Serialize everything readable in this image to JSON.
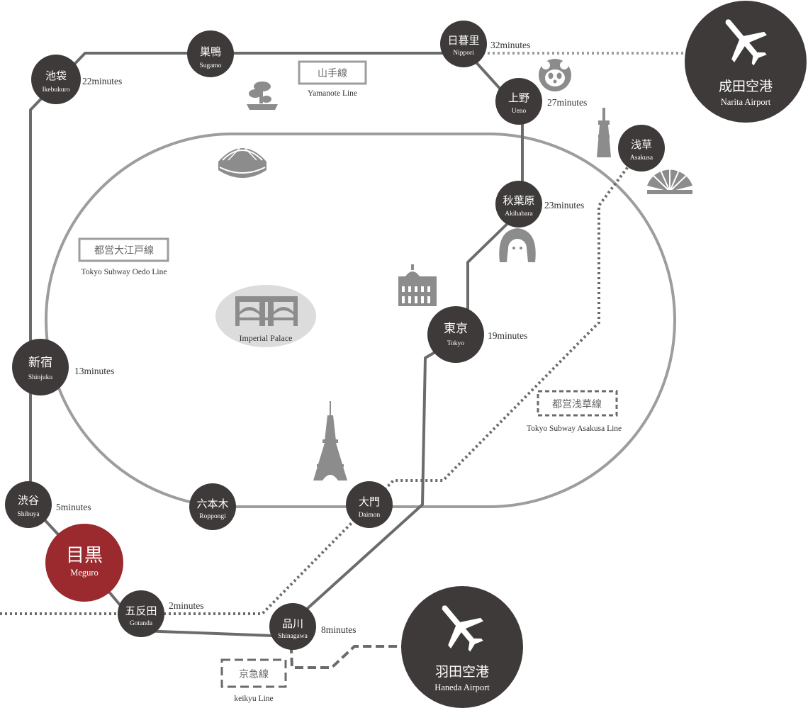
{
  "colors": {
    "station": "#3e3a39",
    "station_highlight": "#9b2a2e",
    "line_dark": "#6b6b6b",
    "line_oedo": "#9d9d9d",
    "palace_fill": "#dcdcdc"
  },
  "stations": {
    "ikebukuro": {
      "ja": "池袋",
      "en": "Ikebukuro"
    },
    "sugamo": {
      "ja": "巣鴨",
      "en": "Sugamo"
    },
    "nippori": {
      "ja": "日暮里",
      "en": "Nippori"
    },
    "ueno": {
      "ja": "上野",
      "en": "Ueno"
    },
    "asakusa": {
      "ja": "浅草",
      "en": "Asakusa"
    },
    "akihabara": {
      "ja": "秋葉原",
      "en": "Akihabara"
    },
    "tokyo": {
      "ja": "東京",
      "en": "Tokyo"
    },
    "shinjuku": {
      "ja": "新宿",
      "en": "Shinjuku"
    },
    "shibuya": {
      "ja": "渋谷",
      "en": "Shibuya"
    },
    "roppongi": {
      "ja": "六本木",
      "en": "Roppongi"
    },
    "daimon": {
      "ja": "大門",
      "en": "Daimon"
    },
    "meguro": {
      "ja": "目黒",
      "en": "Meguro"
    },
    "gotanda": {
      "ja": "五反田",
      "en": "Gotanda"
    },
    "shinagawa": {
      "ja": "品川",
      "en": "Shinagawa"
    }
  },
  "times": {
    "ikebukuro": "22minutes",
    "nippori": "32minutes",
    "ueno": "27minutes",
    "akihabara": "23minutes",
    "tokyo": "19minutes",
    "shinjuku": "13minutes",
    "shibuya": "5minutes",
    "gotanda": "2minutes",
    "shinagawa": "8minutes"
  },
  "lines": {
    "yamanote": {
      "ja": "山手線",
      "en": "Yamanote Line"
    },
    "oedo": {
      "ja": "都営大江戸線",
      "en": "Tokyo Subway Oedo Line"
    },
    "asakusa": {
      "ja": "都営浅草線",
      "en": "Tokyo Subway Asakusa Line"
    },
    "keikyu": {
      "ja": "京急線",
      "en": "keikyu Line"
    }
  },
  "airports": {
    "narita": {
      "ja": "成田空港",
      "en": "Narita Airport",
      "icon": "airplane-icon"
    },
    "haneda": {
      "ja": "羽田空港",
      "en": "Haneda Airport",
      "icon": "airplane-icon"
    }
  },
  "landmarks": {
    "imperial_palace": "Imperial Palace",
    "icons": [
      "bonsai-icon",
      "panda-icon",
      "tokyo-dome-icon",
      "skytree-icon",
      "folding-fan-icon",
      "anime-girl-icon",
      "tokyo-station-building-icon",
      "tokyo-tower-icon"
    ]
  }
}
